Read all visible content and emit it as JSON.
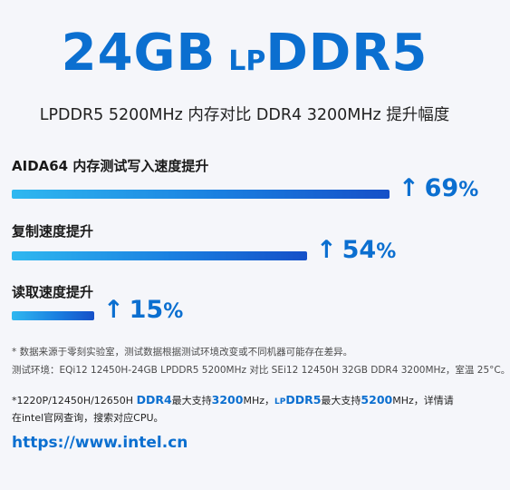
{
  "header": {
    "headline_part1": "24GB",
    "headline_part2": "LP",
    "headline_part3": "DDR5",
    "subtitle": "LPDDR5 5200MHz 内存对比 DDR4 3200MHz 提升幅度"
  },
  "chart_data": {
    "type": "bar",
    "categories": [
      "AIDA64 内存测试写入速度提升",
      "复制速度提升",
      "读取速度提升"
    ],
    "values": [
      69,
      54,
      15
    ],
    "value_labels": [
      "69",
      "54",
      "15"
    ],
    "unit": "%",
    "arrow": "↑",
    "max": 69
  },
  "notes": {
    "line1": "* 数据来源于零刻实验室，测试数据根据测试环境改变或不同机器可能存在差异。",
    "line2": "测试环境：EQi12 12450H-24GB LPDDR5 5200MHz 对比 SEi12 12450H 32GB DDR4 3200MHz，室温 25°C。"
  },
  "footnote": {
    "seg1": "*1220P/12450H/12650H ",
    "seg2": "DDR4",
    "seg3": "最大支持",
    "seg4": "3200",
    "seg5": "MHz，",
    "seg6": "LP",
    "seg7": "DDR5",
    "seg8": "最大支持",
    "seg9": "5200",
    "seg10": "MHz，详情请",
    "line2": "在intel官网查询，搜索对应CPU。"
  },
  "link": {
    "url": "https://www.intel.cn"
  },
  "colors": {
    "accent": "#0b6fd0",
    "bar_start": "#2fb8f0",
    "bar_end": "#1550c8",
    "background": "#f5f6fa"
  }
}
